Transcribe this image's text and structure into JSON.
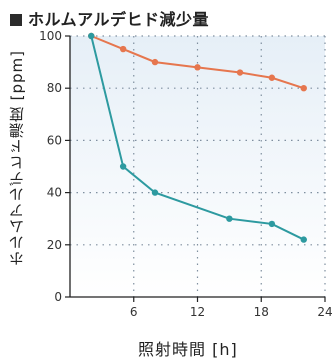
{
  "title": "ホルムアルデヒド減少量",
  "colors": {
    "title_square": "#2b2b2b",
    "plot_bg_top": "#e6eff7",
    "plot_bg_bottom": "#ffffff",
    "grid": "#7f8f9f",
    "axis": "#222222"
  },
  "chart_data": {
    "type": "line",
    "title": "ホルムアルデヒド減少量",
    "xlabel": "照射時間 [h]",
    "ylabel": "ホルムアルデヒド濃度 [ppm]",
    "xlim": [
      0,
      24
    ],
    "ylim": [
      0,
      100
    ],
    "x_ticks": [
      6,
      12,
      18,
      24
    ],
    "y_ticks": [
      0,
      20,
      40,
      60,
      80,
      100
    ],
    "grid": true,
    "series": [
      {
        "color": "#e6764e",
        "points": [
          [
            2,
            100
          ],
          [
            5,
            95
          ],
          [
            8,
            90
          ],
          [
            12,
            88
          ],
          [
            16,
            86
          ],
          [
            19,
            84
          ],
          [
            22,
            80
          ]
        ]
      },
      {
        "color": "#2d9aa0",
        "points": [
          [
            2,
            100
          ],
          [
            5,
            50
          ],
          [
            8,
            40
          ],
          [
            15,
            30
          ],
          [
            19,
            28
          ],
          [
            22,
            22
          ]
        ]
      }
    ]
  }
}
